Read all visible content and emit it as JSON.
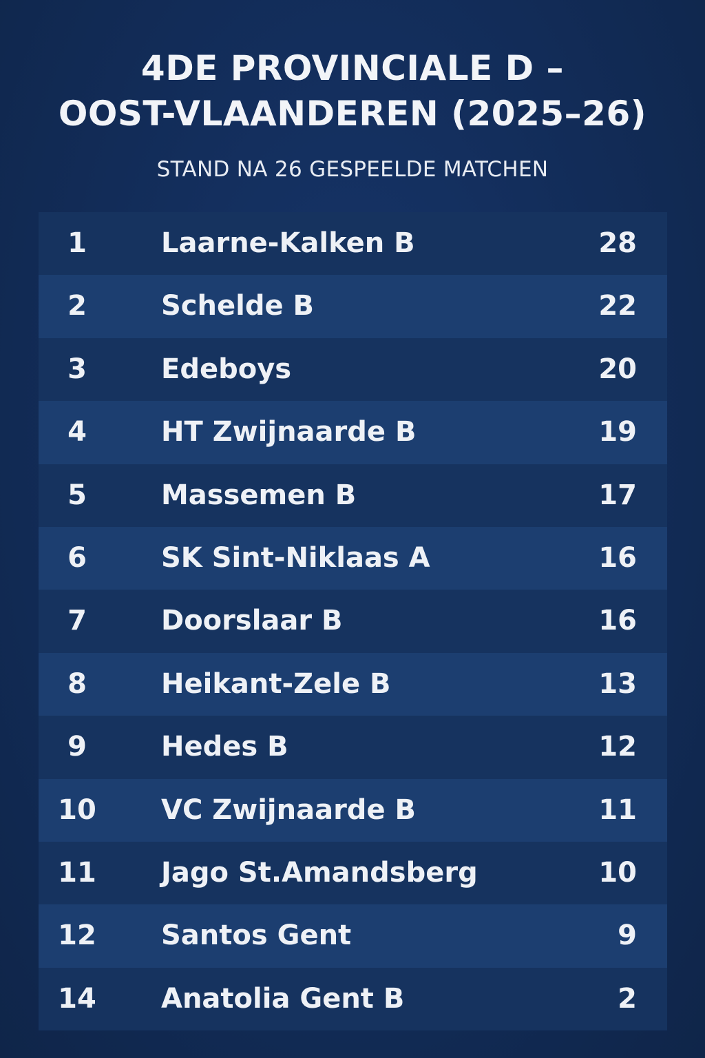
{
  "header": {
    "title_line1": "4DE PROVINCIALE D –",
    "title_line2": "OOST-VLAANDEREN (2025–26)",
    "subtitle": "STAND NA 26 GESPEELDE MATCHEN"
  },
  "standings": [
    {
      "rank": "1",
      "team": "Laarne-Kalken B",
      "points": "28"
    },
    {
      "rank": "2",
      "team": "Schelde B",
      "points": "22"
    },
    {
      "rank": "3",
      "team": "Edeboys",
      "points": "20"
    },
    {
      "rank": "4",
      "team": "HT Zwijnaarde B",
      "points": "19"
    },
    {
      "rank": "5",
      "team": "Massemen B",
      "points": "17"
    },
    {
      "rank": "6",
      "team": "SK Sint-Niklaas A",
      "points": "16"
    },
    {
      "rank": "7",
      "team": "Doorslaar B",
      "points": "16"
    },
    {
      "rank": "8",
      "team": "Heikant-Zele B",
      "points": "13"
    },
    {
      "rank": "9",
      "team": "Hedes B",
      "points": "12"
    },
    {
      "rank": "10",
      "team": "VC Zwijnaarde B",
      "points": "11"
    },
    {
      "rank": "11",
      "team": "Jago St.Amandsberg",
      "points": "10"
    },
    {
      "rank": "12",
      "team": "Santos Gent",
      "points": "9"
    },
    {
      "rank": "14",
      "team": "Anatolia Gent B",
      "points": "2"
    }
  ],
  "colors": {
    "background": "#122c58",
    "row_dark": "#16335f",
    "row_light": "#1c3e70",
    "text": "#eef1f6"
  }
}
